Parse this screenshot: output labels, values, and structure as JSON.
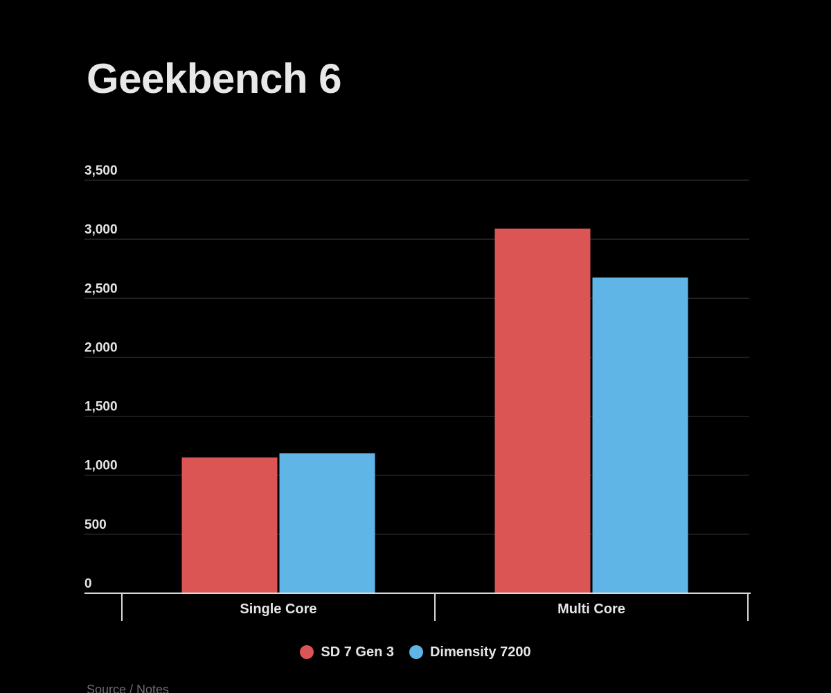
{
  "colors": {
    "background": "#000000",
    "sd7gen3": "#dc5555",
    "dimensity7200": "#5fb5e6",
    "grid": "#3a3a3a",
    "axis": "#d9d9d9"
  },
  "source_note": "Source / Notes",
  "chart_data": {
    "type": "bar",
    "title": "Geekbench 6",
    "xlabel": "",
    "ylabel": "",
    "categories": [
      "Single Core",
      "Multi Core"
    ],
    "series": [
      {
        "name": "SD 7 Gen 3",
        "color": "#dc5555",
        "values": [
          1150,
          3090
        ]
      },
      {
        "name": "Dimensity 7200",
        "color": "#5fb5e6",
        "values": [
          1185,
          2675
        ]
      }
    ],
    "ylim": [
      0,
      3500
    ],
    "yticks": [
      0,
      500,
      1000,
      1500,
      2000,
      2500,
      3000,
      3500
    ],
    "ytick_labels": [
      "0",
      "500",
      "1,000",
      "1,500",
      "2,000",
      "2,500",
      "3,000",
      "3,500"
    ],
    "grid": true,
    "legend": "bottom-center"
  }
}
